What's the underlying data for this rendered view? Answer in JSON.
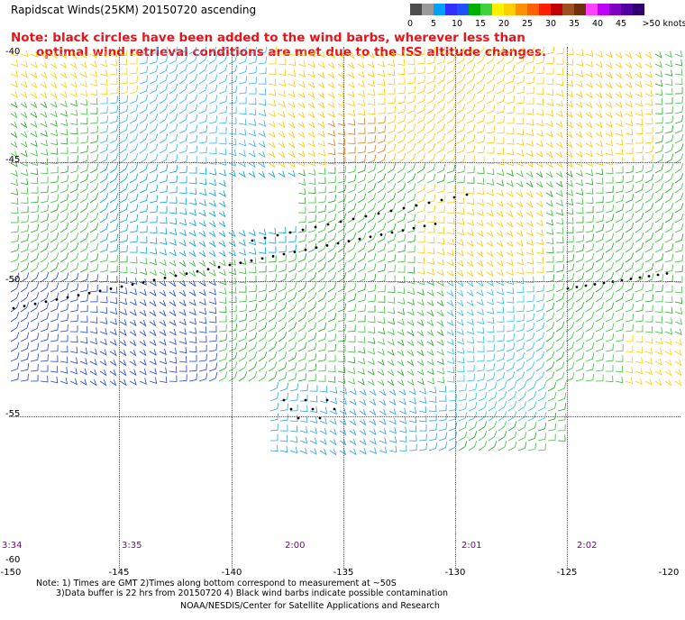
{
  "header": {
    "title": "Rapidscat Winds(25KM) 20150720 ascending",
    "note_line1": "Note: black circles have been added to the wind barbs, wherever less than",
    "note_line2": "optimal wind retrieval conditions are met due to the ISS altitude changes."
  },
  "legend": {
    "unit": ">50 knots",
    "bins": [
      {
        "label": "0",
        "color": "#4d4d4d"
      },
      {
        "label": "",
        "color": "#9a9a9a"
      },
      {
        "label": "5",
        "color": "#00a0ff"
      },
      {
        "label": "",
        "color": "#3030ff"
      },
      {
        "label": "10",
        "color": "#2050ff"
      },
      {
        "label": "",
        "color": "#00b000"
      },
      {
        "label": "15",
        "color": "#40d040"
      },
      {
        "label": "",
        "color": "#fff000"
      },
      {
        "label": "20",
        "color": "#ffd000"
      },
      {
        "label": "",
        "color": "#ff9000"
      },
      {
        "label": "25",
        "color": "#ff6000"
      },
      {
        "label": "",
        "color": "#ff2000"
      },
      {
        "label": "30",
        "color": "#c00000"
      },
      {
        "label": "",
        "color": "#a05020"
      },
      {
        "label": "35",
        "color": "#703010"
      },
      {
        "label": "",
        "color": "#ff40ff"
      },
      {
        "label": "40",
        "color": "#c000ff"
      },
      {
        "label": "",
        "color": "#8000c0"
      },
      {
        "label": "45",
        "color": "#5000a0"
      },
      {
        "label": "",
        "color": "#300070"
      }
    ]
  },
  "axes": {
    "lat_labels": [
      "-40",
      "-45",
      "-50",
      "-55",
      "-60"
    ],
    "lon_labels": [
      "-150",
      "-145",
      "-140",
      "-135",
      "-130",
      "-125",
      "-120"
    ]
  },
  "times": [
    "3:34",
    "3:35",
    "2:00",
    "2:01",
    "2:02"
  ],
  "footer": {
    "line1": "Note: 1) Times are GMT 2)Times along bottom correspond to measurement at ~50S",
    "line2": "3)Data buffer is 22 hrs from 20150720 4) Black wind barbs indicate possible contamination",
    "line3": "NOAA/NESDIS/Center for Satellite Applications and Research"
  }
}
